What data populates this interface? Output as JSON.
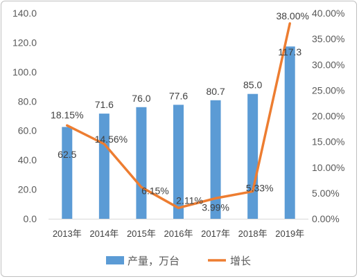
{
  "chart_data": {
    "type": "bar",
    "categories": [
      "2013年",
      "2014年",
      "2015年",
      "2016年",
      "2017年",
      "2018年",
      "2019年"
    ],
    "series": [
      {
        "name": "产量，万台",
        "type": "bar",
        "axis": "left",
        "color": "#5b9bd5",
        "values": [
          62.5,
          71.6,
          76.0,
          77.6,
          80.7,
          85.0,
          117.3
        ],
        "labels": [
          "62.5",
          "71.6",
          "76.0",
          "77.6",
          "80.7",
          "85.0",
          "117.3"
        ]
      },
      {
        "name": "增长",
        "type": "line",
        "axis": "right",
        "color": "#ed7d31",
        "values": [
          18.15,
          14.56,
          6.15,
          2.11,
          3.99,
          5.33,
          38.0
        ],
        "labels": [
          "18.15%",
          "14.56%",
          "6.15%",
          "2.11%",
          "3.99%",
          "5.33%",
          "38.00%"
        ]
      }
    ],
    "y_left": {
      "ylim": [
        0,
        140
      ],
      "ticks": [
        "0.0",
        "20.0",
        "40.0",
        "60.0",
        "80.0",
        "100.0",
        "120.0",
        "140.0"
      ]
    },
    "y_right": {
      "ylim": [
        0,
        40
      ],
      "ticks": [
        "0.00%",
        "5.00%",
        "10.00%",
        "15.00%",
        "20.00%",
        "25.00%",
        "30.00%",
        "35.00%",
        "40.00%"
      ]
    },
    "legend_position": "bottom",
    "grid": false
  }
}
